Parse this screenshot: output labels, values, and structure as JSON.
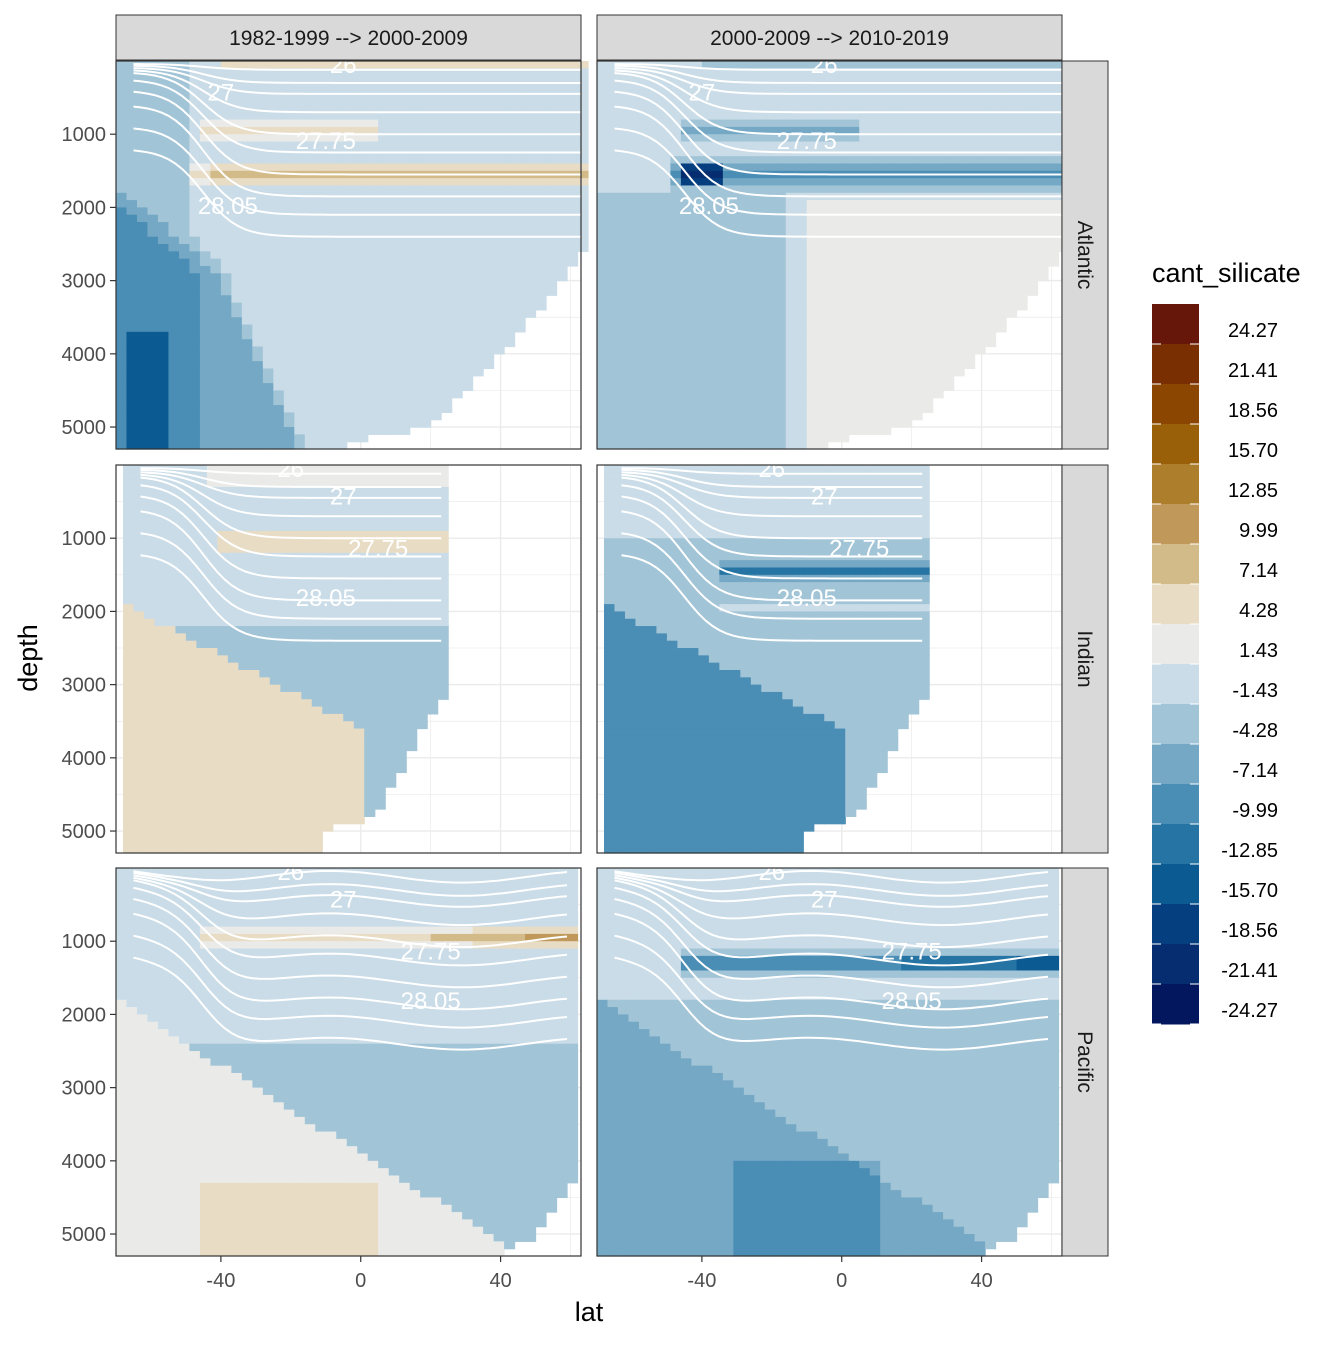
{
  "chart_data": {
    "type": "heatmap",
    "title": "",
    "xlabel": "lat",
    "ylabel": "depth",
    "xlim": [
      -70,
      63
    ],
    "ylim": [
      0,
      5300
    ],
    "y_reversed": true,
    "x_ticks": [
      "-40",
      "0",
      "40"
    ],
    "y_ticks": [
      "1000",
      "2000",
      "3000",
      "4000",
      "5000"
    ],
    "columns": [
      "1982-1999 --> 2000-2009",
      "2000-2009 --> 2010-2019"
    ],
    "rows": [
      "Atlantic",
      "Indian",
      "Pacific"
    ],
    "isopycnal_labels": [
      "26",
      "27",
      "27.75",
      "28.05"
    ],
    "legend": {
      "title": "cant_silicate",
      "breaks": [
        "24.27",
        "21.41",
        "18.56",
        "15.70",
        "12.85",
        "9.99",
        "7.14",
        "4.28",
        "1.43",
        "-1.43",
        "-4.28",
        "-7.14",
        "-9.99",
        "-12.85",
        "-15.70",
        "-18.56",
        "-21.41",
        "-24.27"
      ],
      "colors": [
        "#67170a",
        "#7a2f03",
        "#8b4602",
        "#9a6009",
        "#ad7f2d",
        "#c0995a",
        "#d3bb89",
        "#e8dcc5",
        "#eaebe8",
        "#c9dce7",
        "#a2c4d7",
        "#74a8c4",
        "#4a8db5",
        "#2574a3",
        "#0c5a92",
        "#063f7f",
        "#052d70",
        "#03175f"
      ]
    },
    "panels": [
      {
        "row": "Atlantic",
        "column": "1982-1999 --> 2000-2009",
        "summary": "positive bands 0-1600 m north of -50, negative deep south"
      },
      {
        "row": "Atlantic",
        "column": "2000-2009 --> 2010-2019",
        "summary": "negative intermediate bands, max near -40 at 1500 m"
      },
      {
        "row": "Indian",
        "column": "1982-1999 --> 2000-2009",
        "summary": "positive deep water in south, band at 1000 m"
      },
      {
        "row": "Indian",
        "column": "2000-2009 --> 2010-2019",
        "summary": "negative deep water in south, band at 1500 m"
      },
      {
        "row": "Pacific",
        "column": "1982-1999 --> 2000-2009",
        "summary": "positive band at 1000 m, positive deep south"
      },
      {
        "row": "Pacific",
        "column": "2000-2009 --> 2010-2019",
        "summary": "strong negative band at 1300 m, negative deep"
      }
    ]
  }
}
